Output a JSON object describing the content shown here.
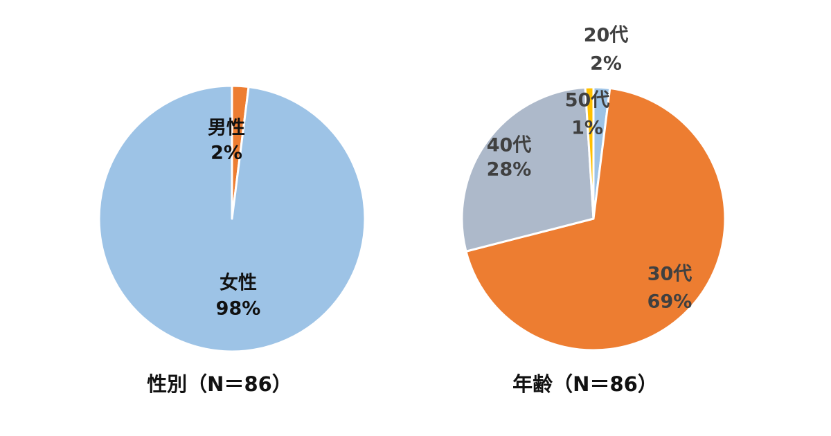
{
  "chart_data": [
    {
      "type": "pie",
      "title": "性別（N＝86）",
      "slices": [
        {
          "category": "男性",
          "percent_label": "2%",
          "value": 2,
          "color": "#ED7D31",
          "label_color": "#111111"
        },
        {
          "category": "女性",
          "percent_label": "98%",
          "value": 98,
          "color": "#9DC3E6",
          "label_color": "#111111"
        }
      ]
    },
    {
      "type": "pie",
      "title": "年齢（N＝86）",
      "slices": [
        {
          "category": "20代",
          "percent_label": "2%",
          "value": 2,
          "color": "#9DC3E6",
          "label_color": "#404040"
        },
        {
          "category": "30代",
          "percent_label": "69%",
          "value": 69,
          "color": "#ED7D31",
          "label_color": "#404040"
        },
        {
          "category": "40代",
          "percent_label": "28%",
          "value": 28,
          "color": "#ADB9CA",
          "label_color": "#404040"
        },
        {
          "category": "50代",
          "percent_label": "1%",
          "value": 1,
          "color": "#FFC000",
          "label_color": "#404040"
        }
      ]
    }
  ]
}
